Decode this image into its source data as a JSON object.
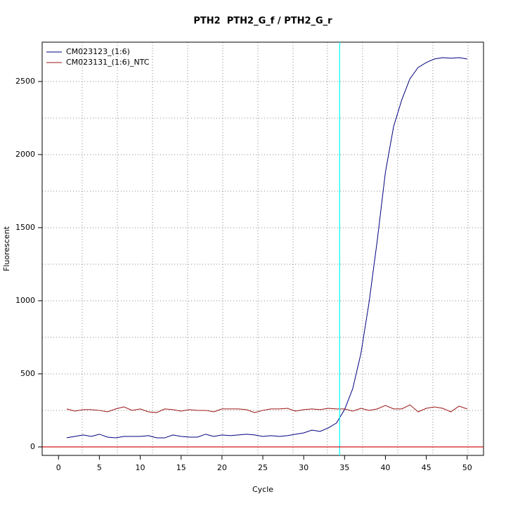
{
  "chart_data": {
    "type": "line",
    "title": "PTH2  PTH2_G_f / PTH2_G_r",
    "x_label": "Cycle",
    "y_label": "Fluorescent",
    "x": [
      1,
      2,
      3,
      4,
      5,
      6,
      7,
      8,
      9,
      10,
      11,
      12,
      13,
      14,
      15,
      16,
      17,
      18,
      19,
      20,
      21,
      22,
      23,
      24,
      25,
      26,
      27,
      28,
      29,
      30,
      31,
      32,
      33,
      34,
      35,
      36,
      37,
      38,
      39,
      40,
      41,
      42,
      43,
      44,
      45,
      46,
      47,
      48,
      49,
      50
    ],
    "series": [
      {
        "name": "CM023123_(1:6)",
        "color": "#00007f",
        "values": [
          63,
          72,
          82,
          72,
          87,
          67,
          62,
          72,
          72,
          72,
          77,
          62,
          62,
          82,
          72,
          67,
          67,
          87,
          72,
          82,
          77,
          82,
          87,
          82,
          72,
          77,
          72,
          77,
          87,
          96,
          115,
          106,
          130,
          163,
          255,
          399,
          639,
          990,
          1413,
          1880,
          2192,
          2375,
          2519,
          2596,
          2630,
          2654,
          2663,
          2659,
          2663,
          2654
        ]
      },
      {
        "name": "CM023131_(1:6)_NTC",
        "color": "#9c1414",
        "values": [
          260,
          245,
          255,
          255,
          250,
          240,
          260,
          274,
          250,
          260,
          240,
          235,
          260,
          255,
          245,
          255,
          250,
          250,
          240,
          260,
          260,
          260,
          255,
          235,
          250,
          260,
          260,
          264,
          245,
          255,
          260,
          255,
          264,
          260,
          260,
          245,
          264,
          250,
          260,
          284,
          260,
          260,
          288,
          240,
          264,
          274,
          264,
          240,
          279,
          260
        ]
      }
    ],
    "xlim": [
      -2,
      52
    ],
    "ylim": [
      -58,
      2769
    ],
    "xticks": [
      0,
      5,
      10,
      15,
      20,
      25,
      30,
      35,
      40,
      45,
      50
    ],
    "yticks": [
      0,
      500,
      1000,
      1500,
      2000,
      2500
    ],
    "grid": true,
    "xgrid": [
      2.9,
      7.2,
      11.5,
      15.8,
      20.1,
      24.4,
      28.7,
      32.9,
      37.2,
      41.5,
      45.8,
      50.1
    ],
    "ygrid": [
      0,
      250,
      500,
      750,
      1000,
      1250,
      1500,
      1750,
      2000,
      2250,
      2500
    ],
    "threshold_x": 34.4,
    "threshold_x_color": "#00ffff",
    "baseline_y": 0,
    "baseline_y_color": "#d00000",
    "legend": "top-left"
  }
}
